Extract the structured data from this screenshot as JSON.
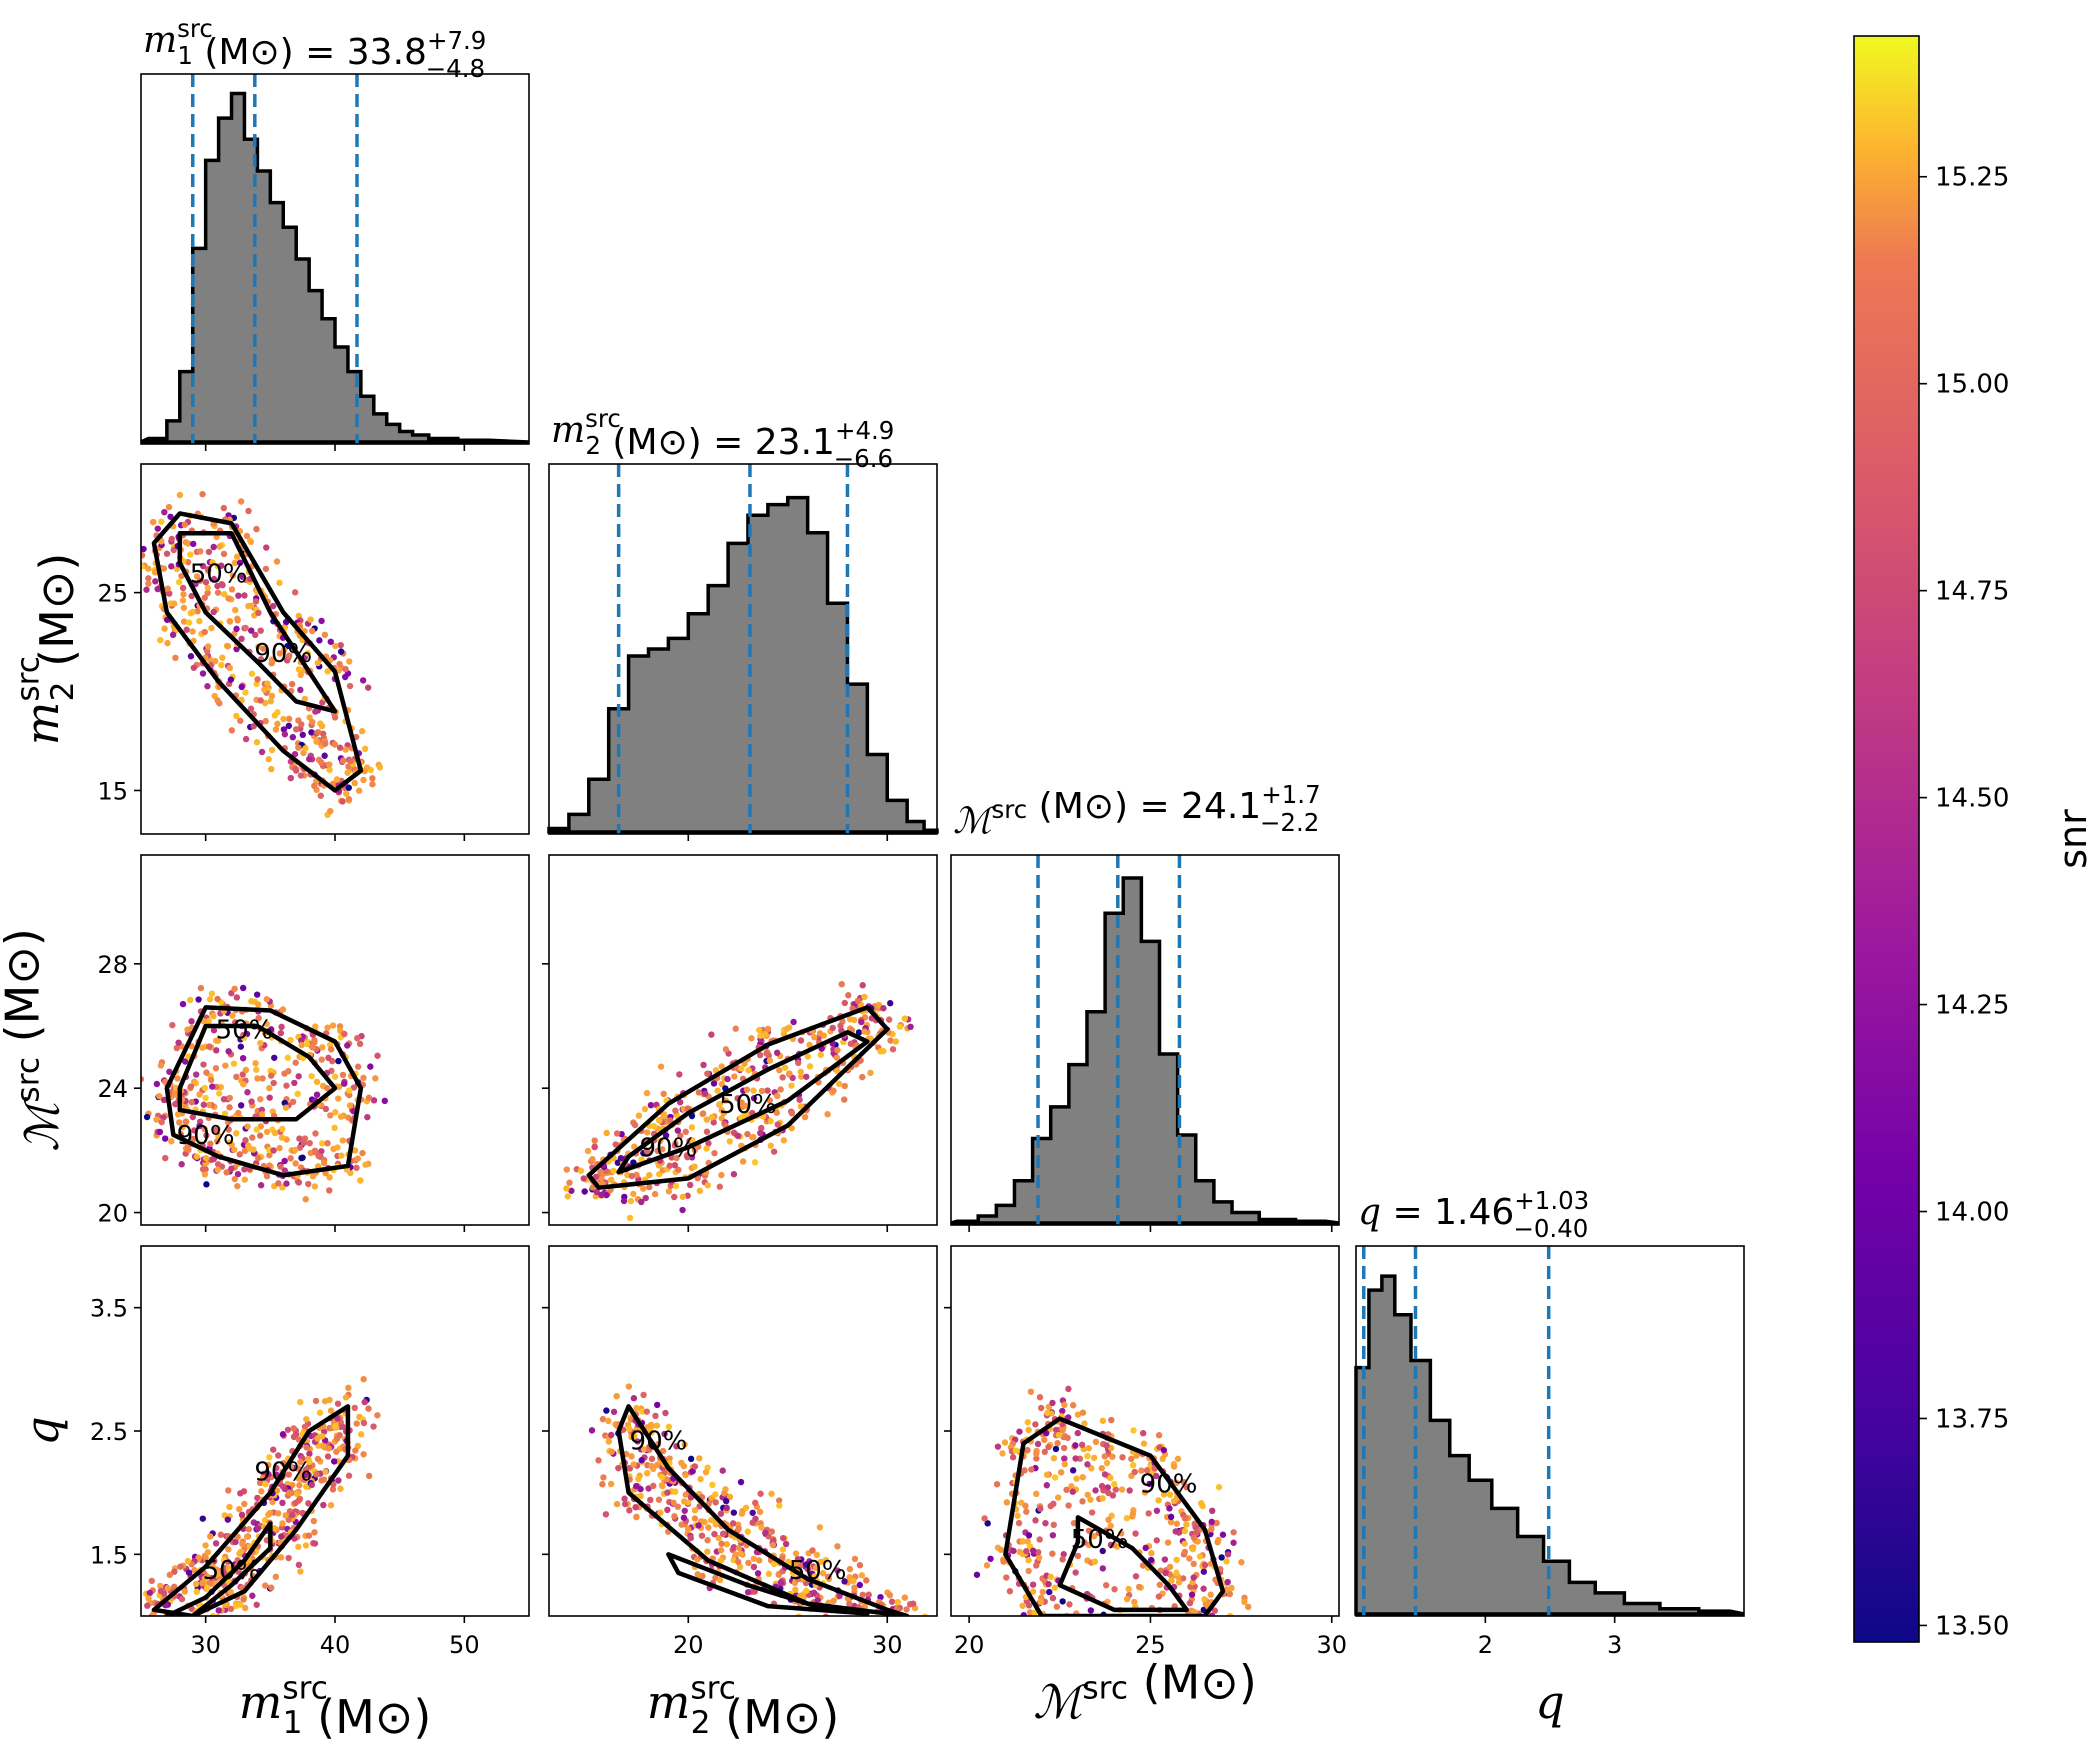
{
  "chart_data": {
    "type": "corner",
    "parameters": [
      {
        "key": "m1",
        "symbol": "m",
        "sub": "1",
        "sup": "src",
        "unit": "(M⊙)",
        "median": "33.8",
        "plus": "+7.9",
        "minus": "−4.8",
        "range": [
          25,
          55
        ],
        "ticks": [
          30,
          40,
          50
        ],
        "tick_labels": [
          "30",
          "40",
          "50"
        ],
        "quantiles": [
          29.0,
          33.8,
          41.7
        ]
      },
      {
        "key": "m2",
        "symbol": "m",
        "sub": "2",
        "sup": "src",
        "unit": "(M⊙)",
        "median": "23.1",
        "plus": "+4.9",
        "minus": "−6.6",
        "range": [
          13,
          32.5
        ],
        "ticks": [
          20,
          30
        ],
        "tick_labels": [
          "20",
          "30"
        ],
        "quantiles": [
          16.5,
          23.1,
          28.0
        ]
      },
      {
        "key": "mc",
        "symbol": "ℳ",
        "sub": "",
        "sup": "src",
        "unit": "(M⊙)",
        "median": "24.1",
        "plus": "+1.7",
        "minus": "−2.2",
        "range": [
          19.5,
          30.2
        ],
        "ticks": [
          20,
          25,
          30
        ],
        "tick_labels": [
          "20",
          "25",
          "30"
        ],
        "quantiles": [
          21.9,
          24.1,
          25.8
        ]
      },
      {
        "key": "q",
        "symbol": "q",
        "sub": "",
        "sup": "",
        "unit": "",
        "median": "1.46",
        "plus": "+1.03",
        "minus": "−0.40",
        "range": [
          1.0,
          4.0
        ],
        "ticks": [
          2,
          3
        ],
        "tick_labels": [
          "2",
          "3"
        ],
        "quantiles": [
          1.06,
          1.46,
          2.49
        ]
      }
    ],
    "y_axes": {
      "m2": {
        "range": [
          12.8,
          31.5
        ],
        "ticks": [
          15,
          25
        ],
        "tick_labels": [
          "15",
          "25"
        ]
      },
      "mc": {
        "range": [
          19.6,
          31.5
        ],
        "ticks": [
          20,
          24,
          28
        ],
        "tick_labels": [
          "20",
          "24",
          "28"
        ]
      },
      "q": {
        "range": [
          1.0,
          4.0
        ],
        "ticks": [
          1.5,
          2.5,
          3.5
        ],
        "tick_labels": [
          "1.5",
          "2.5",
          "3.5"
        ]
      }
    },
    "histograms": {
      "m1": [
        [
          26.5,
          0.01
        ],
        [
          27.5,
          0.06
        ],
        [
          28.5,
          0.2
        ],
        [
          29.5,
          0.55
        ],
        [
          30.5,
          0.8
        ],
        [
          31.5,
          0.92
        ],
        [
          32.5,
          0.99
        ],
        [
          33.5,
          0.86
        ],
        [
          34.5,
          0.77
        ],
        [
          35.5,
          0.68
        ],
        [
          36.5,
          0.61
        ],
        [
          37.5,
          0.52
        ],
        [
          38.5,
          0.43
        ],
        [
          39.5,
          0.35
        ],
        [
          40.5,
          0.27
        ],
        [
          41.5,
          0.2
        ],
        [
          42.5,
          0.13
        ],
        [
          43.5,
          0.08
        ],
        [
          44.5,
          0.05
        ],
        [
          45.5,
          0.03
        ],
        [
          46.5,
          0.02
        ],
        [
          48,
          0.01
        ],
        [
          51,
          0.005
        ]
      ],
      "m2": [
        [
          13.5,
          0.01
        ],
        [
          14.5,
          0.05
        ],
        [
          15.5,
          0.15
        ],
        [
          16.5,
          0.35
        ],
        [
          17.5,
          0.5
        ],
        [
          18.5,
          0.52
        ],
        [
          19.5,
          0.55
        ],
        [
          20.5,
          0.62
        ],
        [
          21.5,
          0.7
        ],
        [
          22.5,
          0.82
        ],
        [
          23.5,
          0.9
        ],
        [
          24.5,
          0.93
        ],
        [
          25.5,
          0.95
        ],
        [
          26.5,
          0.85
        ],
        [
          27.5,
          0.65
        ],
        [
          28.5,
          0.42
        ],
        [
          29.5,
          0.22
        ],
        [
          30.5,
          0.09
        ],
        [
          31.5,
          0.03
        ],
        [
          32.2,
          0.005
        ]
      ],
      "mc": [
        [
          20.0,
          0.005
        ],
        [
          20.5,
          0.02
        ],
        [
          21.0,
          0.05
        ],
        [
          21.5,
          0.12
        ],
        [
          22.0,
          0.24
        ],
        [
          22.5,
          0.33
        ],
        [
          23.0,
          0.45
        ],
        [
          23.5,
          0.6
        ],
        [
          24.0,
          0.88
        ],
        [
          24.5,
          0.98
        ],
        [
          25.0,
          0.8
        ],
        [
          25.5,
          0.48
        ],
        [
          26.0,
          0.25
        ],
        [
          26.5,
          0.12
        ],
        [
          27.0,
          0.06
        ],
        [
          27.5,
          0.03
        ],
        [
          28.5,
          0.01
        ],
        [
          29.5,
          0.005
        ]
      ],
      "q": [
        [
          1.05,
          0.7
        ],
        [
          1.15,
          0.92
        ],
        [
          1.25,
          0.96
        ],
        [
          1.35,
          0.85
        ],
        [
          1.5,
          0.72
        ],
        [
          1.65,
          0.55
        ],
        [
          1.8,
          0.45
        ],
        [
          1.95,
          0.38
        ],
        [
          2.15,
          0.3
        ],
        [
          2.35,
          0.22
        ],
        [
          2.55,
          0.15
        ],
        [
          2.75,
          0.09
        ],
        [
          2.95,
          0.06
        ],
        [
          3.2,
          0.03
        ],
        [
          3.5,
          0.015
        ],
        [
          3.8,
          0.008
        ]
      ]
    },
    "contours": {
      "m2_m1": {
        "c50": [
          [
            28,
            28
          ],
          [
            32,
            28
          ],
          [
            35,
            24
          ],
          [
            38,
            21
          ],
          [
            40,
            19
          ],
          [
            37,
            19.5
          ],
          [
            34,
            21.5
          ],
          [
            30,
            24
          ],
          [
            28,
            26.5
          ]
        ],
        "c90": [
          [
            26,
            27.5
          ],
          [
            28,
            29
          ],
          [
            32,
            28.5
          ],
          [
            36,
            24
          ],
          [
            40,
            21
          ],
          [
            42,
            16
          ],
          [
            40,
            15
          ],
          [
            36,
            17
          ],
          [
            31,
            20.5
          ],
          [
            27,
            24
          ]
        ],
        "label50": [
          31,
          25.5
        ],
        "label90": [
          36,
          21.5
        ]
      },
      "mc_m1": {
        "c50": [
          [
            28,
            24
          ],
          [
            30,
            26
          ],
          [
            34,
            26
          ],
          [
            38,
            25
          ],
          [
            40,
            24
          ],
          [
            37,
            23
          ],
          [
            32,
            23
          ],
          [
            28,
            23.3
          ]
        ],
        "c90": [
          [
            27,
            24
          ],
          [
            30,
            26.6
          ],
          [
            35,
            26.5
          ],
          [
            40,
            25.5
          ],
          [
            42,
            24
          ],
          [
            41,
            21.5
          ],
          [
            36,
            21.2
          ],
          [
            31,
            21.8
          ],
          [
            27.5,
            22.5
          ]
        ],
        "label50": [
          33,
          25.6
        ],
        "label90": [
          30,
          22.2
        ]
      },
      "mc_m2": {
        "c50": [
          [
            17,
            21.8
          ],
          [
            20,
            23.2
          ],
          [
            24,
            24.6
          ],
          [
            28,
            25.8
          ],
          [
            29,
            25.5
          ],
          [
            25,
            23.6
          ],
          [
            20,
            22.1
          ],
          [
            16.5,
            21.3
          ]
        ],
        "c90": [
          [
            15,
            21.2
          ],
          [
            19,
            23.5
          ],
          [
            24,
            25.4
          ],
          [
            29,
            26.6
          ],
          [
            30,
            25.9
          ],
          [
            25,
            22.8
          ],
          [
            20,
            21.1
          ],
          [
            15.5,
            20.8
          ]
        ],
        "label50": [
          23,
          23.2
        ],
        "label90": [
          19,
          21.8
        ]
      },
      "q_m1": {
        "c50": [
          [
            27,
            1.0
          ],
          [
            30,
            1.15
          ],
          [
            33,
            1.45
          ],
          [
            35,
            1.75
          ],
          [
            35,
            1.55
          ],
          [
            32,
            1.25
          ],
          [
            29,
            1.0
          ]
        ],
        "c90": [
          [
            26,
            1.05
          ],
          [
            30,
            1.4
          ],
          [
            35,
            2.0
          ],
          [
            38,
            2.5
          ],
          [
            41,
            2.7
          ],
          [
            41,
            2.3
          ],
          [
            37,
            1.7
          ],
          [
            33,
            1.2
          ],
          [
            29,
            1.0
          ]
        ],
        "label50": [
          32,
          1.3
        ],
        "label90": [
          36,
          2.1
        ]
      },
      "q_m2": {
        "c50": [
          [
            19,
            1.5
          ],
          [
            23,
            1.25
          ],
          [
            27,
            1.05
          ],
          [
            29,
            1.02
          ],
          [
            24,
            1.08
          ],
          [
            19.5,
            1.35
          ]
        ],
        "c90": [
          [
            17,
            2.7
          ],
          [
            19,
            2.2
          ],
          [
            22,
            1.7
          ],
          [
            26,
            1.3
          ],
          [
            30,
            1.05
          ],
          [
            31,
            1.0
          ],
          [
            26,
            1.1
          ],
          [
            21,
            1.45
          ],
          [
            17,
            2.0
          ],
          [
            16.5,
            2.5
          ]
        ],
        "label50": [
          26.5,
          1.3
        ],
        "label90": [
          18.5,
          2.35
        ]
      },
      "q_mc": {
        "c50": [
          [
            23,
            1.8
          ],
          [
            24.5,
            1.55
          ],
          [
            25.5,
            1.25
          ],
          [
            26,
            1.05
          ],
          [
            24,
            1.05
          ],
          [
            22.5,
            1.25
          ],
          [
            23,
            1.6
          ]
        ],
        "c90": [
          [
            21.5,
            2.4
          ],
          [
            22.5,
            2.6
          ],
          [
            25,
            2.3
          ],
          [
            26.5,
            1.7
          ],
          [
            27,
            1.2
          ],
          [
            26.5,
            1.0
          ],
          [
            22,
            1.0
          ],
          [
            21,
            1.5
          ]
        ],
        "label50": [
          23.6,
          1.55
        ],
        "label90": [
          25.5,
          2.0
        ]
      }
    },
    "contour_labels": [
      "50%",
      "90%"
    ],
    "colorbar": {
      "label": "snr",
      "range": [
        13.48,
        15.42
      ],
      "ticks": [
        13.5,
        13.75,
        14.0,
        14.25,
        14.5,
        14.75,
        15.0,
        15.25
      ],
      "tick_labels": [
        "13.50",
        "13.75",
        "14.00",
        "14.25",
        "14.50",
        "14.75",
        "15.00",
        "15.25"
      ],
      "colormap": "plasma"
    },
    "colors": {
      "hist_fill": "#808080",
      "quantile_line": "#1f77b4",
      "contour": "#000000"
    }
  }
}
